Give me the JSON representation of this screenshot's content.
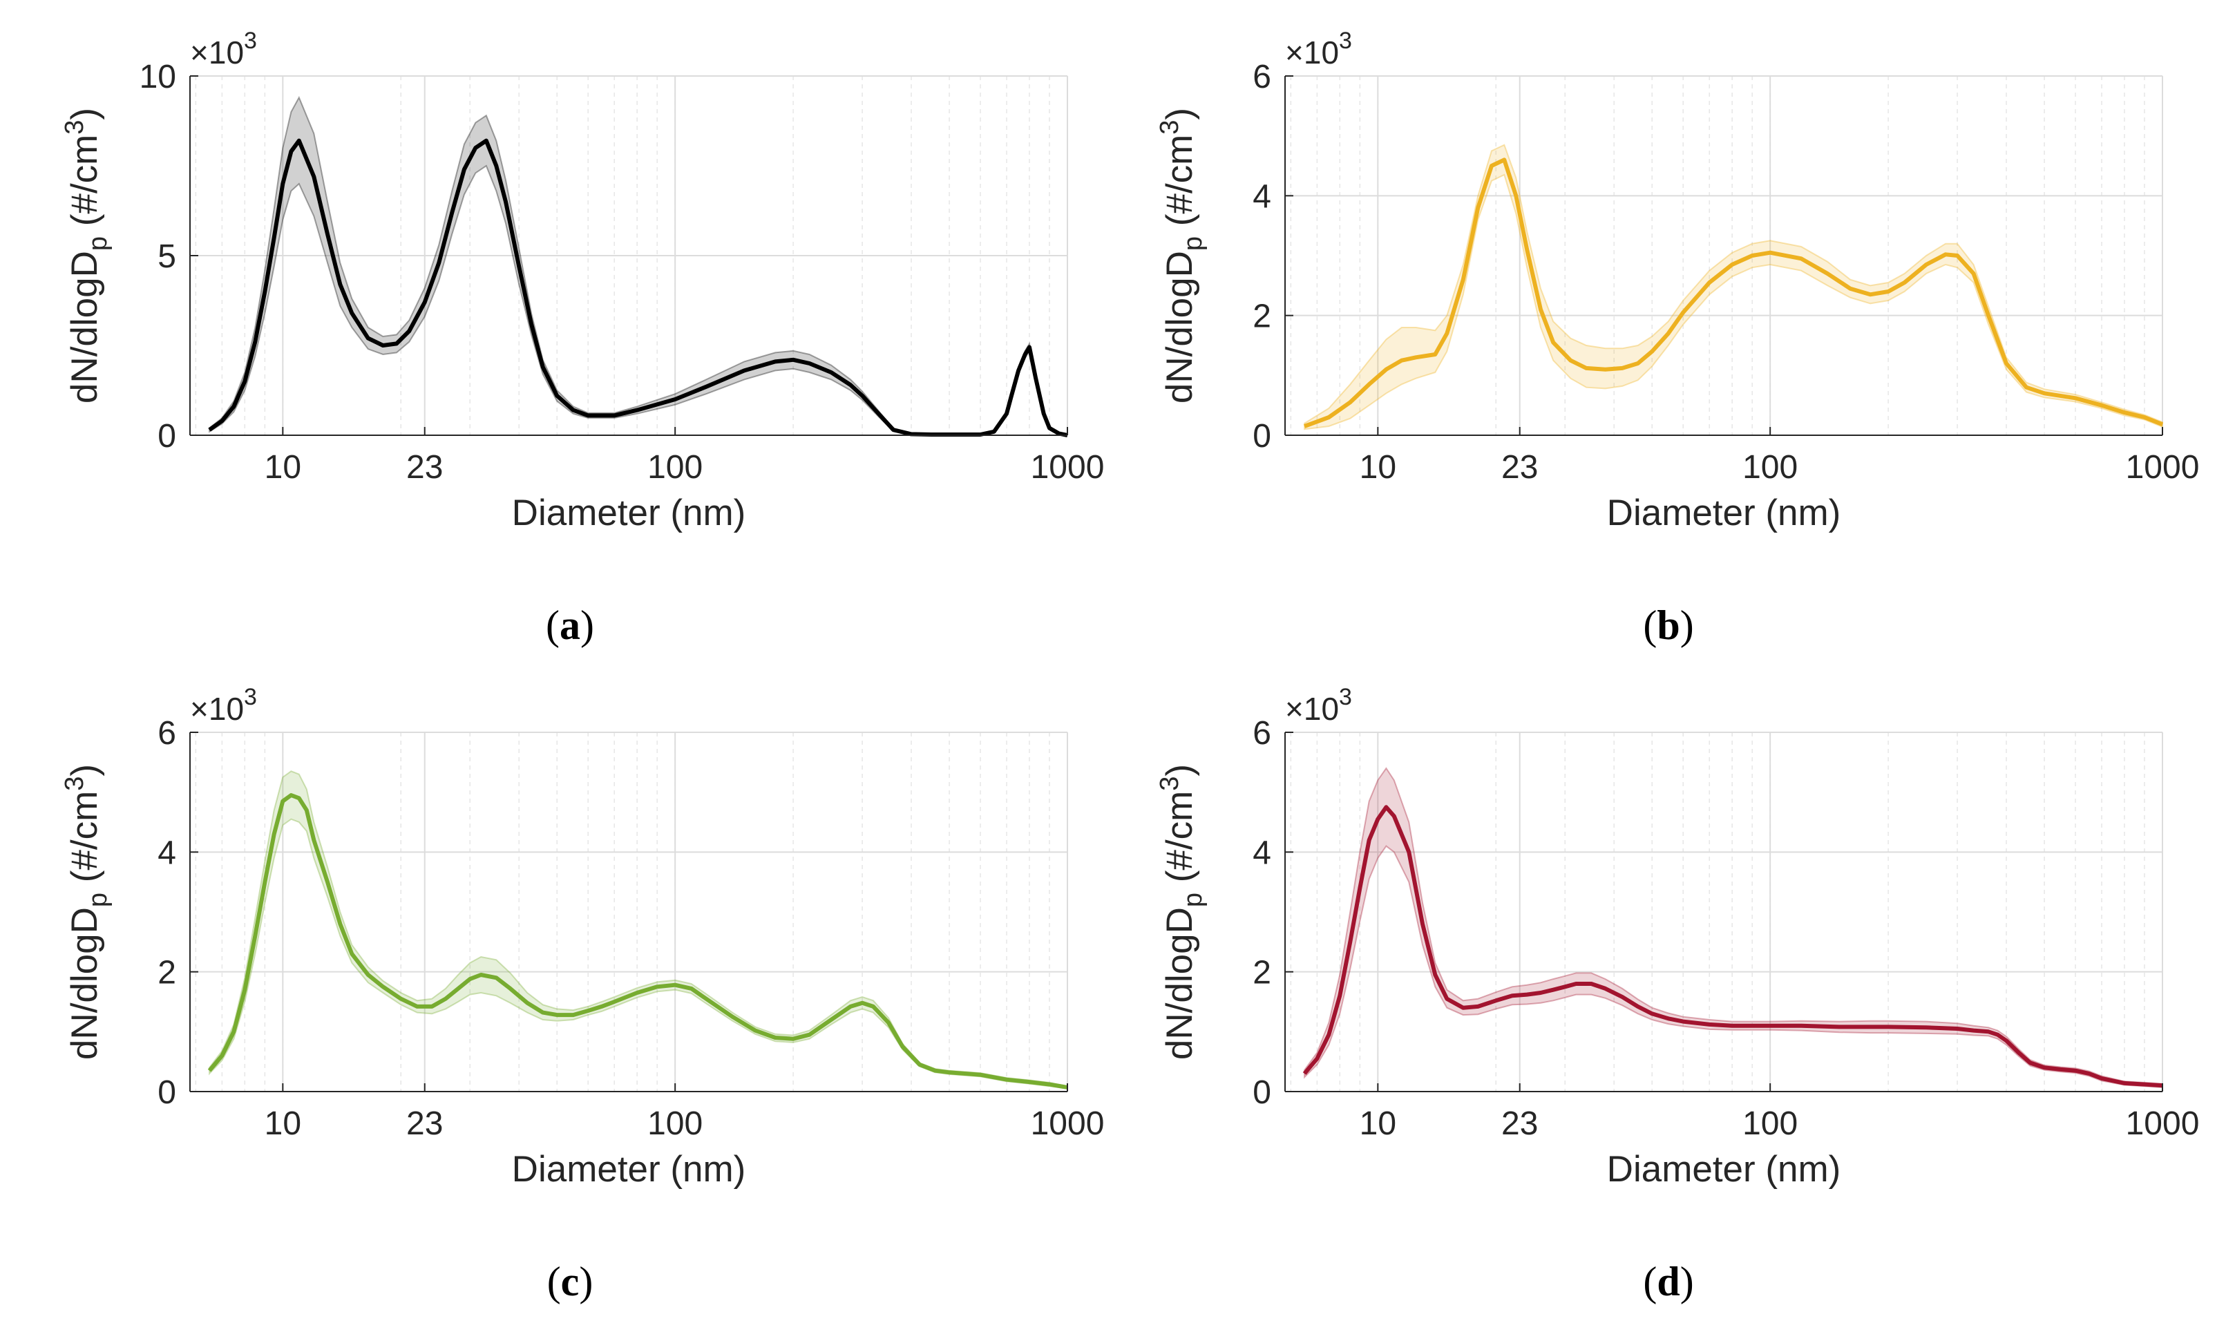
{
  "figure": {
    "panels": [
      {
        "label_open": "(",
        "label_letter": "a",
        "label_close": ")"
      },
      {
        "label_open": "(",
        "label_letter": "b",
        "label_close": ")"
      },
      {
        "label_open": "(",
        "label_letter": "c",
        "label_close": ")"
      },
      {
        "label_open": "(",
        "label_letter": "d",
        "label_close": ")"
      }
    ]
  },
  "chart_data": [
    {
      "type": "line",
      "panel": "a",
      "title": "",
      "xlabel": "Diameter (nm)",
      "ylabel_main": "dN/dlogD",
      "ylabel_sub": "p",
      "ylabel_unit": " (#/cm",
      "ylabel_sup": "3",
      "ylabel_close": ")",
      "xscale": "log",
      "xlim": [
        5.8,
        1000
      ],
      "ylim": [
        0,
        10
      ],
      "xticks": [
        10,
        23,
        100,
        1000
      ],
      "xtick_labels": [
        "10",
        "23",
        "100",
        "1000"
      ],
      "yticks": [
        0,
        5,
        10
      ],
      "ytick_labels": [
        "0",
        "5",
        "10"
      ],
      "y_multiplier": "×10",
      "y_multiplier_exp": "3",
      "grid": true,
      "color": "#000000",
      "x": [
        6.5,
        7,
        7.5,
        8,
        8.5,
        9,
        9.5,
        10,
        10.5,
        11,
        12,
        13,
        14,
        15,
        16.5,
        18,
        19.5,
        21,
        23,
        25,
        27,
        29,
        31,
        33,
        35,
        37,
        40,
        43,
        46,
        50,
        55,
        60,
        70,
        80,
        100,
        120,
        150,
        180,
        200,
        220,
        250,
        280,
        300,
        330,
        360,
        400,
        450,
        500,
        550,
        600,
        650,
        700,
        720,
        750,
        780,
        800,
        830,
        870,
        900,
        950,
        1000
      ],
      "y": [
        0.15,
        0.4,
        0.8,
        1.5,
        2.6,
        4.0,
        5.5,
        7.0,
        7.9,
        8.2,
        7.2,
        5.6,
        4.2,
        3.4,
        2.7,
        2.5,
        2.55,
        2.9,
        3.7,
        4.8,
        6.2,
        7.4,
        8.0,
        8.2,
        7.5,
        6.5,
        4.7,
        3.1,
        1.9,
        1.1,
        0.7,
        0.55,
        0.55,
        0.7,
        1.0,
        1.35,
        1.8,
        2.05,
        2.1,
        2.0,
        1.75,
        1.4,
        1.1,
        0.6,
        0.15,
        0.03,
        0.02,
        0.02,
        0.02,
        0.02,
        0.1,
        0.6,
        1.1,
        1.8,
        2.25,
        2.45,
        1.6,
        0.6,
        0.2,
        0.05,
        0.0
      ],
      "y_upper": [
        0.2,
        0.48,
        0.95,
        1.75,
        3.0,
        4.6,
        6.3,
        8.0,
        9.0,
        9.4,
        8.4,
        6.5,
        4.8,
        3.8,
        3.0,
        2.75,
        2.8,
        3.2,
        4.1,
        5.3,
        6.8,
        8.1,
        8.7,
        8.9,
        8.2,
        7.1,
        5.2,
        3.4,
        2.1,
        1.25,
        0.8,
        0.62,
        0.62,
        0.8,
        1.15,
        1.55,
        2.05,
        2.3,
        2.35,
        2.25,
        1.95,
        1.55,
        1.22,
        0.68,
        0.18,
        0.04,
        0.03,
        0.03,
        0.03,
        0.03,
        0.12,
        0.65,
        1.2,
        1.9,
        2.35,
        2.55,
        1.7,
        0.65,
        0.22,
        0.06,
        0.0
      ],
      "y_lower": [
        0.1,
        0.32,
        0.65,
        1.25,
        2.2,
        3.4,
        4.7,
        6.0,
        6.8,
        7.0,
        6.1,
        4.8,
        3.6,
        3.0,
        2.4,
        2.25,
        2.3,
        2.6,
        3.3,
        4.3,
        5.6,
        6.7,
        7.3,
        7.5,
        6.8,
        5.9,
        4.2,
        2.8,
        1.7,
        0.95,
        0.6,
        0.48,
        0.48,
        0.6,
        0.85,
        1.15,
        1.55,
        1.8,
        1.85,
        1.75,
        1.55,
        1.25,
        0.98,
        0.52,
        0.12,
        0.02,
        0.01,
        0.01,
        0.01,
        0.01,
        0.08,
        0.55,
        1.0,
        1.7,
        2.15,
        2.35,
        1.5,
        0.55,
        0.18,
        0.04,
        0.0
      ]
    },
    {
      "type": "line",
      "panel": "b",
      "title": "",
      "xlabel": "Diameter (nm)",
      "ylabel_main": "dN/dlogD",
      "ylabel_sub": "p",
      "ylabel_unit": " (#/cm",
      "ylabel_sup": "3",
      "ylabel_close": ")",
      "xscale": "log",
      "xlim": [
        5.8,
        1000
      ],
      "ylim": [
        0,
        6
      ],
      "xticks": [
        10,
        23,
        100,
        1000
      ],
      "xtick_labels": [
        "10",
        "23",
        "100",
        "1000"
      ],
      "yticks": [
        0,
        2,
        4,
        6
      ],
      "ytick_labels": [
        "0",
        "2",
        "4",
        "6"
      ],
      "y_multiplier": "×10",
      "y_multiplier_exp": "3",
      "grid": true,
      "color": "#EDB120",
      "x": [
        6.5,
        7.5,
        8.5,
        9.5,
        10.5,
        11.5,
        12.5,
        14,
        15,
        16.5,
        18,
        19.5,
        21,
        22.5,
        24,
        26,
        28,
        31,
        34,
        38,
        42,
        46,
        50,
        55,
        60,
        70,
        80,
        90,
        100,
        120,
        140,
        160,
        180,
        200,
        220,
        250,
        280,
        300,
        330,
        360,
        400,
        450,
        500,
        600,
        700,
        800,
        900,
        1000
      ],
      "y": [
        0.15,
        0.3,
        0.55,
        0.85,
        1.1,
        1.25,
        1.3,
        1.35,
        1.7,
        2.6,
        3.8,
        4.5,
        4.6,
        4.0,
        3.1,
        2.1,
        1.55,
        1.25,
        1.12,
        1.1,
        1.12,
        1.2,
        1.4,
        1.7,
        2.05,
        2.55,
        2.85,
        3.0,
        3.05,
        2.95,
        2.7,
        2.45,
        2.35,
        2.4,
        2.55,
        2.85,
        3.02,
        3.0,
        2.7,
        2.0,
        1.2,
        0.8,
        0.7,
        0.62,
        0.5,
        0.38,
        0.3,
        0.18
      ],
      "y_upper": [
        0.2,
        0.45,
        0.85,
        1.25,
        1.6,
        1.8,
        1.8,
        1.75,
        2.0,
        2.85,
        4.0,
        4.75,
        4.85,
        4.3,
        3.4,
        2.45,
        1.9,
        1.62,
        1.5,
        1.45,
        1.45,
        1.5,
        1.65,
        1.9,
        2.25,
        2.75,
        3.05,
        3.2,
        3.25,
        3.15,
        2.9,
        2.6,
        2.5,
        2.55,
        2.7,
        3.0,
        3.2,
        3.2,
        2.85,
        2.15,
        1.3,
        0.88,
        0.77,
        0.68,
        0.55,
        0.43,
        0.34,
        0.22
      ],
      "y_lower": [
        0.1,
        0.15,
        0.28,
        0.5,
        0.7,
        0.85,
        0.95,
        1.05,
        1.4,
        2.35,
        3.6,
        4.25,
        4.35,
        3.7,
        2.8,
        1.8,
        1.25,
        0.95,
        0.8,
        0.78,
        0.82,
        0.92,
        1.15,
        1.5,
        1.85,
        2.35,
        2.65,
        2.8,
        2.85,
        2.75,
        2.5,
        2.3,
        2.2,
        2.25,
        2.4,
        2.7,
        2.85,
        2.8,
        2.55,
        1.85,
        1.1,
        0.72,
        0.63,
        0.56,
        0.45,
        0.33,
        0.26,
        0.14
      ]
    },
    {
      "type": "line",
      "panel": "c",
      "title": "",
      "xlabel": "Diameter (nm)",
      "ylabel_main": "dN/dlogD",
      "ylabel_sub": "p",
      "ylabel_unit": " (#/cm",
      "ylabel_sup": "3",
      "ylabel_close": ")",
      "xscale": "log",
      "xlim": [
        5.8,
        1000
      ],
      "ylim": [
        0,
        6
      ],
      "xticks": [
        10,
        23,
        100,
        1000
      ],
      "xtick_labels": [
        "10",
        "23",
        "100",
        "1000"
      ],
      "yticks": [
        0,
        2,
        4,
        6
      ],
      "ytick_labels": [
        "0",
        "2",
        "4",
        "6"
      ],
      "y_multiplier": "×10",
      "y_multiplier_exp": "3",
      "grid": true,
      "color": "#77AC30",
      "x": [
        6.5,
        7,
        7.5,
        8,
        8.5,
        9,
        9.5,
        10,
        10.5,
        11,
        11.5,
        12,
        13,
        14,
        15,
        16.5,
        18,
        20,
        22,
        24,
        26,
        28,
        30,
        32,
        35,
        38,
        42,
        46,
        50,
        55,
        60,
        65,
        70,
        80,
        90,
        100,
        110,
        120,
        140,
        160,
        180,
        200,
        220,
        250,
        280,
        300,
        320,
        350,
        380,
        420,
        460,
        500,
        600,
        700,
        800,
        900,
        1000
      ],
      "y": [
        0.35,
        0.6,
        1.0,
        1.7,
        2.6,
        3.5,
        4.3,
        4.85,
        4.95,
        4.9,
        4.7,
        4.2,
        3.5,
        2.8,
        2.3,
        1.95,
        1.75,
        1.55,
        1.42,
        1.42,
        1.55,
        1.72,
        1.88,
        1.95,
        1.9,
        1.72,
        1.48,
        1.32,
        1.28,
        1.28,
        1.35,
        1.42,
        1.5,
        1.65,
        1.75,
        1.78,
        1.72,
        1.55,
        1.25,
        1.02,
        0.9,
        0.88,
        0.95,
        1.2,
        1.42,
        1.48,
        1.42,
        1.15,
        0.75,
        0.45,
        0.35,
        0.32,
        0.28,
        0.2,
        0.16,
        0.12,
        0.07
      ],
      "y_upper": [
        0.4,
        0.68,
        1.12,
        1.9,
        2.9,
        3.85,
        4.7,
        5.25,
        5.35,
        5.3,
        5.05,
        4.5,
        3.75,
        3.0,
        2.45,
        2.08,
        1.85,
        1.65,
        1.52,
        1.55,
        1.72,
        1.95,
        2.15,
        2.25,
        2.2,
        1.98,
        1.65,
        1.45,
        1.38,
        1.36,
        1.42,
        1.5,
        1.58,
        1.73,
        1.83,
        1.86,
        1.8,
        1.63,
        1.32,
        1.08,
        0.96,
        0.94,
        1.02,
        1.28,
        1.52,
        1.58,
        1.52,
        1.23,
        0.8,
        0.48,
        0.38,
        0.35,
        0.31,
        0.23,
        0.19,
        0.15,
        0.09
      ],
      "y_lower": [
        0.3,
        0.52,
        0.88,
        1.5,
        2.3,
        3.15,
        3.9,
        4.45,
        4.55,
        4.5,
        4.35,
        3.9,
        3.25,
        2.6,
        2.15,
        1.82,
        1.65,
        1.45,
        1.32,
        1.3,
        1.38,
        1.5,
        1.62,
        1.65,
        1.6,
        1.48,
        1.32,
        1.2,
        1.18,
        1.2,
        1.28,
        1.34,
        1.42,
        1.57,
        1.67,
        1.7,
        1.64,
        1.47,
        1.18,
        0.96,
        0.84,
        0.82,
        0.88,
        1.12,
        1.32,
        1.38,
        1.32,
        1.07,
        0.7,
        0.42,
        0.32,
        0.29,
        0.25,
        0.17,
        0.13,
        0.09,
        0.05
      ]
    },
    {
      "type": "line",
      "panel": "d",
      "title": "",
      "xlabel": "Diameter (nm)",
      "ylabel_main": "dN/dlogD",
      "ylabel_sub": "p",
      "ylabel_unit": " (#/cm",
      "ylabel_sup": "3",
      "ylabel_close": ")",
      "xscale": "log",
      "xlim": [
        5.8,
        1000
      ],
      "ylim": [
        0,
        6
      ],
      "xticks": [
        10,
        23,
        100,
        1000
      ],
      "xtick_labels": [
        "10",
        "23",
        "100",
        "1000"
      ],
      "yticks": [
        0,
        2,
        4,
        6
      ],
      "ytick_labels": [
        "0",
        "2",
        "4",
        "6"
      ],
      "y_multiplier": "×10",
      "y_multiplier_exp": "3",
      "grid": true,
      "color": "#A2142F",
      "x": [
        6.5,
        7,
        7.5,
        8,
        8.5,
        9,
        9.5,
        10,
        10.5,
        11,
        12,
        13,
        14,
        15,
        16.5,
        18,
        20,
        22,
        24,
        26,
        28,
        30,
        32,
        35,
        38,
        42,
        46,
        50,
        55,
        60,
        70,
        80,
        100,
        120,
        150,
        180,
        200,
        250,
        300,
        330,
        360,
        380,
        400,
        430,
        460,
        500,
        550,
        600,
        650,
        700,
        800,
        900,
        1000
      ],
      "y": [
        0.3,
        0.55,
        0.95,
        1.6,
        2.5,
        3.4,
        4.2,
        4.55,
        4.75,
        4.6,
        4.0,
        2.8,
        1.95,
        1.55,
        1.4,
        1.42,
        1.52,
        1.6,
        1.62,
        1.65,
        1.7,
        1.75,
        1.8,
        1.8,
        1.72,
        1.58,
        1.42,
        1.3,
        1.22,
        1.17,
        1.12,
        1.1,
        1.1,
        1.1,
        1.08,
        1.08,
        1.08,
        1.07,
        1.05,
        1.02,
        1.0,
        0.95,
        0.85,
        0.65,
        0.48,
        0.4,
        0.37,
        0.35,
        0.3,
        0.22,
        0.14,
        0.12,
        0.1
      ],
      "y_upper": [
        0.36,
        0.65,
        1.15,
        1.95,
        3.0,
        4.0,
        4.85,
        5.2,
        5.4,
        5.2,
        4.5,
        3.15,
        2.15,
        1.7,
        1.52,
        1.55,
        1.66,
        1.75,
        1.78,
        1.82,
        1.88,
        1.93,
        1.98,
        1.98,
        1.88,
        1.72,
        1.54,
        1.4,
        1.31,
        1.25,
        1.2,
        1.17,
        1.17,
        1.18,
        1.17,
        1.18,
        1.18,
        1.17,
        1.14,
        1.1,
        1.07,
        1.02,
        0.92,
        0.71,
        0.53,
        0.44,
        0.41,
        0.39,
        0.34,
        0.26,
        0.17,
        0.15,
        0.13
      ],
      "y_lower": [
        0.24,
        0.45,
        0.78,
        1.3,
        2.05,
        2.85,
        3.55,
        3.9,
        4.1,
        4.0,
        3.5,
        2.45,
        1.75,
        1.4,
        1.28,
        1.29,
        1.38,
        1.45,
        1.46,
        1.48,
        1.52,
        1.57,
        1.62,
        1.62,
        1.56,
        1.44,
        1.3,
        1.2,
        1.13,
        1.09,
        1.04,
        1.03,
        1.03,
        1.02,
        0.99,
        0.98,
        0.98,
        0.97,
        0.96,
        0.94,
        0.93,
        0.88,
        0.78,
        0.59,
        0.43,
        0.36,
        0.33,
        0.31,
        0.26,
        0.18,
        0.11,
        0.09,
        0.07
      ]
    }
  ]
}
